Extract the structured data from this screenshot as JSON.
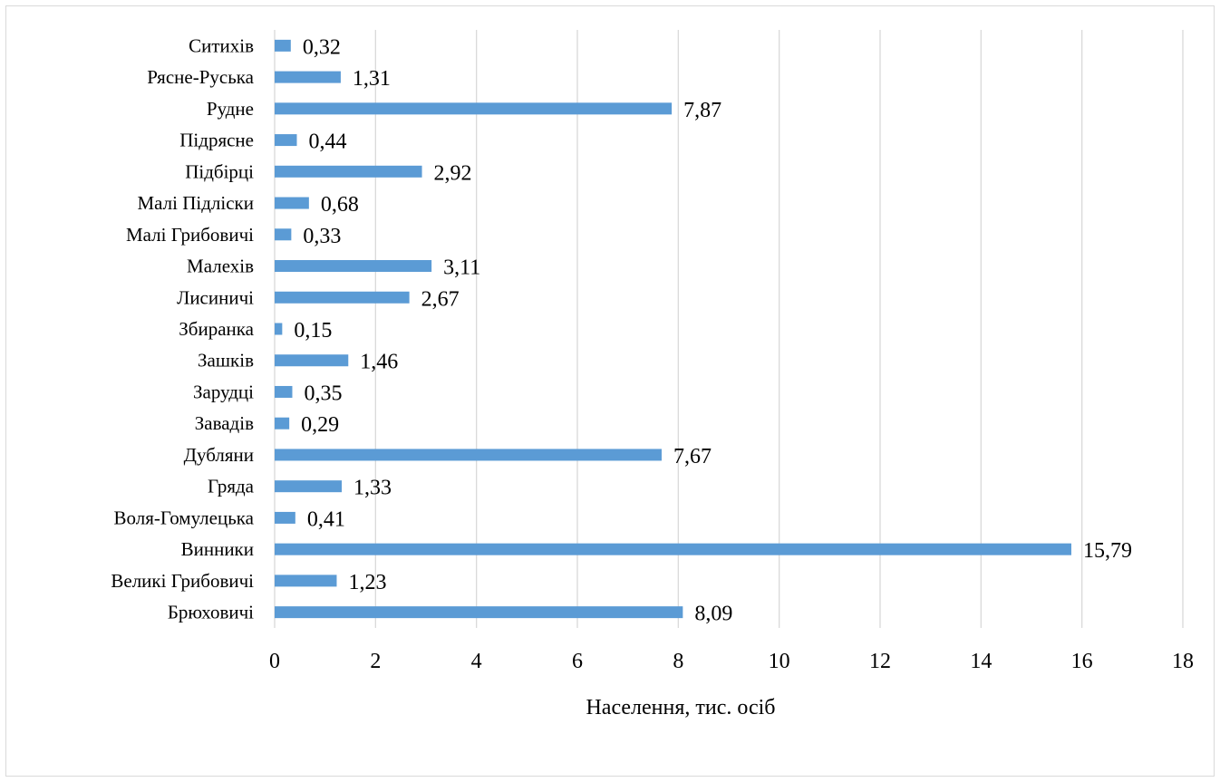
{
  "chart_data": {
    "type": "bar",
    "orientation": "horizontal",
    "categories": [
      "Ситихів",
      "Рясне-Руська",
      "Рудне",
      "Підрясне",
      "Підбірці",
      "Малі Підліски",
      "Малі Грибовичі",
      "Малехів",
      "Лисиничі",
      "Збиранка",
      "Зашків",
      "Зарудці",
      "Завадів",
      "Дубляни",
      "Гряда",
      "Воля-Гомулецька",
      "Винники",
      "Великі Грибовичі",
      "Брюховичі"
    ],
    "values": [
      0.32,
      1.31,
      7.87,
      0.44,
      2.92,
      0.68,
      0.33,
      3.11,
      2.67,
      0.15,
      1.46,
      0.35,
      0.29,
      7.67,
      1.33,
      0.41,
      15.79,
      1.23,
      8.09
    ],
    "value_labels": [
      "0,32",
      "1,31",
      "7,87",
      "0,44",
      "2,92",
      "0,68",
      "0,33",
      "3,11",
      "2,67",
      "0,15",
      "1,46",
      "0,35",
      "0,29",
      "7,67",
      "1,33",
      "0,41",
      "15,79",
      "1,23",
      "8,09"
    ],
    "title": "",
    "xlabel": "Населення, тис. осіб",
    "ylabel": "",
    "xlim": [
      0,
      18
    ],
    "xticks": [
      0,
      2,
      4,
      6,
      8,
      10,
      12,
      14,
      16,
      18
    ],
    "xtick_labels": [
      "0",
      "2",
      "4",
      "6",
      "8",
      "10",
      "12",
      "14",
      "16",
      "18"
    ],
    "grid": "vertical",
    "legend": "none",
    "bar_color": "#5b9bd5"
  }
}
